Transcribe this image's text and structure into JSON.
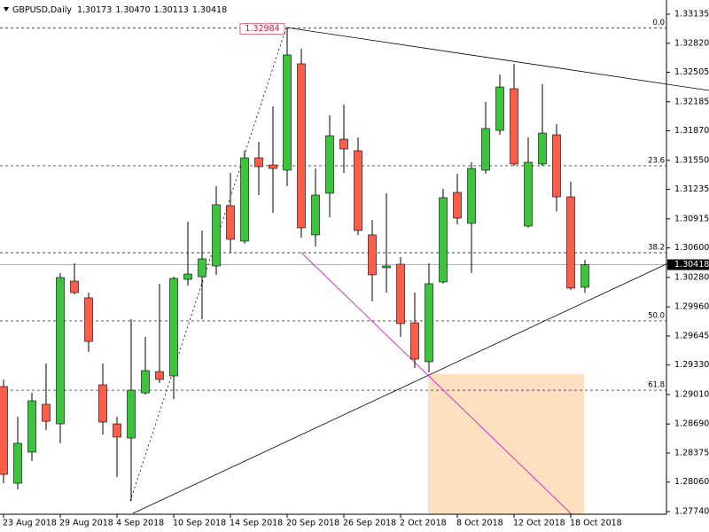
{
  "chart_data": {
    "type": "candlestick",
    "title": "GBPUSD,Daily",
    "header_values": [
      "1.30173",
      "1.30470",
      "1.30113",
      "1.30418"
    ],
    "categories": [
      "23 Aug 2018",
      null,
      null,
      null,
      "29 Aug 2018",
      null,
      null,
      null,
      "4 Sep 2018",
      null,
      null,
      null,
      "10 Sep 2018",
      null,
      null,
      null,
      "14 Sep 2018",
      null,
      null,
      null,
      "20 Sep 2018",
      null,
      null,
      null,
      "26 Sep 2018",
      null,
      null,
      null,
      "2 Oct 2018",
      null,
      null,
      null,
      "8 Oct 2018",
      null,
      null,
      null,
      "12 Oct 2018",
      null,
      null,
      null,
      "18 Oct 2018",
      null
    ],
    "open": [
      1.29096,
      1.28048,
      1.28385,
      1.28904,
      1.28692,
      1.3024,
      1.30058,
      1.29115,
      1.28692,
      1.28538,
      1.29028,
      1.29259,
      1.29211,
      1.30259,
      1.30288,
      1.30404,
      1.31058,
      1.30673,
      1.31577,
      1.315,
      1.31443,
      1.32597,
      1.30741,
      1.31193,
      1.31779,
      1.31654,
      1.30741,
      1.30385,
      1.30423,
      1.29788,
      1.29365,
      1.30231,
      1.31202,
      1.30866,
      1.31443,
      1.31875,
      1.32327,
      1.30837,
      1.3151,
      1.31827,
      1.31154,
      1.30173
    ],
    "high": [
      1.29173,
      1.28769,
      1.29028,
      1.29346,
      1.30327,
      1.30433,
      1.30115,
      1.29346,
      1.28769,
      1.29827,
      1.29634,
      1.30212,
      1.30288,
      1.30885,
      1.30789,
      1.3127,
      1.31413,
      1.31654,
      1.3175,
      1.32135,
      1.32984,
      1.3276,
      1.31462,
      1.32038,
      1.32154,
      1.31798,
      1.30904,
      1.31193,
      1.305,
      1.30115,
      1.30433,
      1.31241,
      1.31404,
      1.31529,
      1.32183,
      1.32481,
      1.32597,
      1.31798,
      1.32375,
      1.31943,
      1.31318,
      1.3047
    ],
    "low": [
      1.28048,
      1.27981,
      1.28289,
      1.28624,
      1.28481,
      1.30096,
      1.29471,
      1.28576,
      1.28115,
      1.27856,
      1.29009,
      1.29134,
      1.28961,
      1.30192,
      1.29827,
      1.30308,
      1.30548,
      1.30644,
      1.31173,
      1.30981,
      1.3127,
      1.30712,
      1.30616,
      1.30933,
      1.31414,
      1.30741,
      1.30019,
      1.30115,
      1.29634,
      1.29298,
      1.2925,
      1.30212,
      1.30856,
      1.30327,
      1.31404,
      1.31827,
      1.31491,
      1.30818,
      1.31491,
      1.30997,
      1.30144,
      1.30113
    ],
    "close": [
      1.28144,
      1.28481,
      1.28942,
      1.2872,
      1.30279,
      1.30115,
      1.29586,
      1.28711,
      1.28548,
      1.29057,
      1.29269,
      1.29173,
      1.30269,
      1.30317,
      1.30481,
      1.31068,
      1.30693,
      1.31577,
      1.31481,
      1.31462,
      1.32693,
      1.30818,
      1.31173,
      1.31817,
      1.31673,
      1.30789,
      1.30308,
      1.30404,
      1.29779,
      1.29394,
      1.30212,
      1.31145,
      1.30923,
      1.31462,
      1.31895,
      1.32346,
      1.3151,
      1.31529,
      1.31846,
      1.31154,
      1.30164,
      1.30418
    ],
    "up_color": "#3cc43c",
    "down_color": "#fa5e4a",
    "ylim": [
      1.27711,
      1.33289
    ],
    "yticks": [
      1.33135,
      {
        "value": 1.3282,
        "label": "1.32820"
      },
      1.32505,
      1.32185,
      {
        "value": 1.3187,
        "label": "1.31870"
      },
      {
        "value": 1.3155,
        "label": "1.31550"
      },
      1.31235,
      1.30915,
      {
        "value": 1.306,
        "label": "1.30600"
      },
      {
        "value": 1.3028,
        "label": "1.30280"
      },
      {
        "value": 1.2996,
        "label": "1.29960"
      },
      1.29645,
      {
        "value": 1.2933,
        "label": "1.29330"
      },
      {
        "value": 1.2901,
        "label": "1.29010"
      },
      {
        "value": 1.2869,
        "label": "1.28690"
      },
      1.28375,
      {
        "value": 1.2806,
        "label": "1.28060"
      },
      {
        "value": 1.2774,
        "label": "1.27740"
      }
    ],
    "fib_levels": [
      {
        "label": "0.0",
        "value": 1.32984
      },
      {
        "label": "23.6",
        "value": 1.31491
      },
      {
        "label": "38.2",
        "value": 1.30548
      },
      {
        "label": "50.0",
        "value": 1.29808
      },
      {
        "label": "61.8",
        "value": 1.29057
      }
    ],
    "peak_label": "1.32984",
    "price_label": "1.30418"
  }
}
